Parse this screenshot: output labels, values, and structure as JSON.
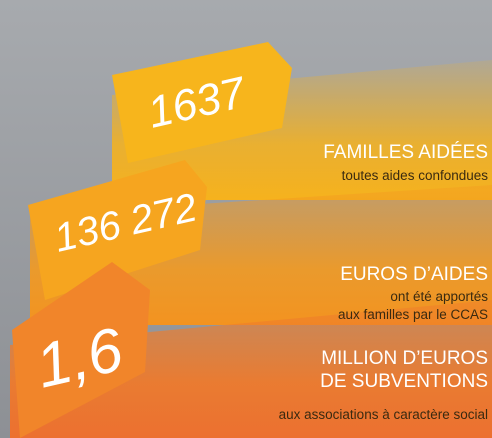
{
  "items": [
    {
      "number": "1637",
      "title": [
        "FAMILLES AIDÉES"
      ],
      "subtitle": [
        "toutes aides confondues"
      ]
    },
    {
      "number": "136 272",
      "title": [
        "EUROS D’AIDES"
      ],
      "subtitle": [
        "ont été apportés",
        "aux familles par le CCAS"
      ]
    },
    {
      "number": "1,6",
      "title": [
        "MILLION D’EUROS",
        "DE SUBVENTIONS"
      ],
      "subtitle": [
        "aux associations à caractère social"
      ]
    }
  ]
}
